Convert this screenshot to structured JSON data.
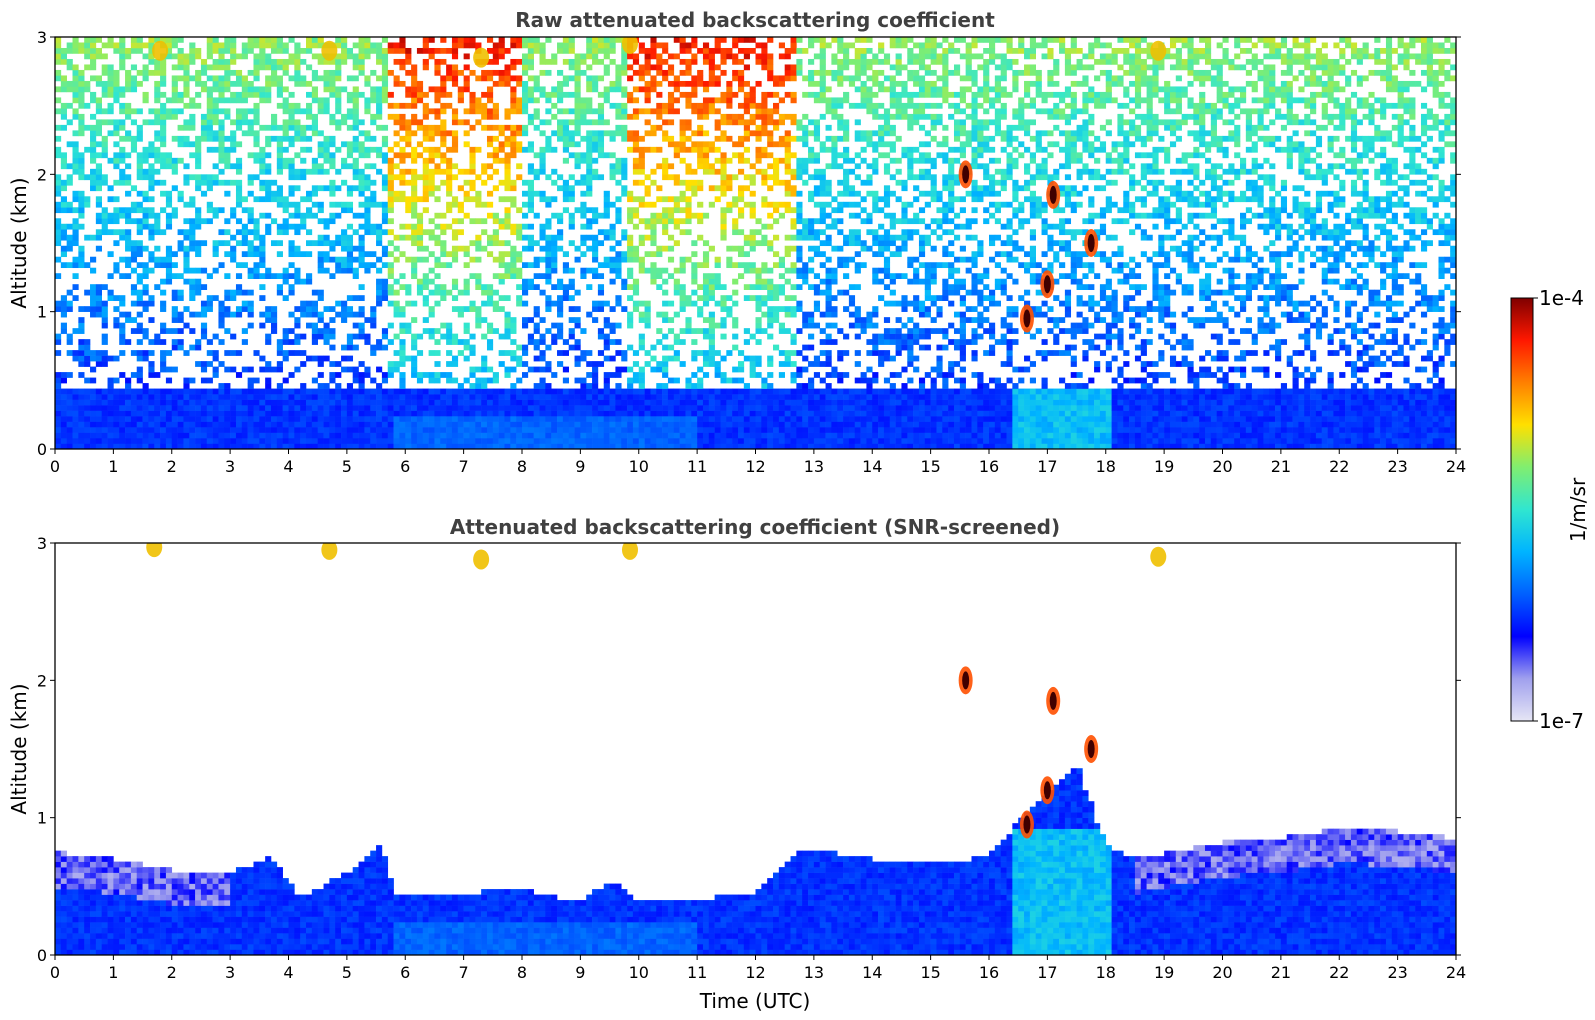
{
  "chart_data": [
    {
      "type": "heatmap",
      "title": "Raw attenuated backscattering coefficient",
      "xlabel": "",
      "ylabel": "Altitude (km)",
      "xlim": [
        0,
        24
      ],
      "ylim": [
        0,
        3
      ],
      "x_ticks": [
        "0",
        "1",
        "2",
        "3",
        "4",
        "5",
        "6",
        "7",
        "8",
        "9",
        "10",
        "11",
        "12",
        "13",
        "14",
        "15",
        "16",
        "17",
        "18",
        "19",
        "20",
        "21",
        "22",
        "23",
        "24"
      ],
      "y_ticks": [
        "0",
        "1",
        "2",
        "3"
      ],
      "grid": false,
      "colorscale": "jet",
      "color_range": [
        "1e-7",
        "1e-4"
      ],
      "features": [
        {
          "kind": "boundary_layer",
          "t_start": 0,
          "t_end": 24,
          "top_km": 0.45
        },
        {
          "kind": "noise_enhanced",
          "t_start": 5.7,
          "t_end": 8.0
        },
        {
          "kind": "noise_enhanced",
          "t_start": 9.8,
          "t_end": 12.7
        },
        {
          "kind": "cloud",
          "t": 1.8,
          "alt_km": 2.9
        },
        {
          "kind": "cloud",
          "t": 4.7,
          "alt_km": 2.9
        },
        {
          "kind": "cloud",
          "t": 7.3,
          "alt_km": 2.85
        },
        {
          "kind": "cloud",
          "t": 9.85,
          "alt_km": 2.95
        },
        {
          "kind": "cloud",
          "t": 15.6,
          "alt_km": 2.0
        },
        {
          "kind": "cloud",
          "t": 17.1,
          "alt_km": 1.85
        },
        {
          "kind": "cloud",
          "t": 17.75,
          "alt_km": 1.5
        },
        {
          "kind": "cloud",
          "t": 17.0,
          "alt_km": 1.2
        },
        {
          "kind": "cloud",
          "t": 16.65,
          "alt_km": 0.95
        },
        {
          "kind": "cloud",
          "t": 18.9,
          "alt_km": 2.9
        }
      ]
    },
    {
      "type": "heatmap",
      "title": "Attenuated backscattering coefficient (SNR-screened)",
      "xlabel": "Time (UTC)",
      "ylabel": "Altitude (km)",
      "xlim": [
        0,
        24
      ],
      "ylim": [
        0,
        3
      ],
      "x_ticks": [
        "0",
        "1",
        "2",
        "3",
        "4",
        "5",
        "6",
        "7",
        "8",
        "9",
        "10",
        "11",
        "12",
        "13",
        "14",
        "15",
        "16",
        "17",
        "18",
        "19",
        "20",
        "21",
        "22",
        "23",
        "24"
      ],
      "y_ticks": [
        "0",
        "1",
        "2",
        "3"
      ],
      "grid": false,
      "colorscale": "jet",
      "color_range": [
        "1e-7",
        "1e-4"
      ],
      "boundary_layer_top_km": [
        [
          0,
          0.75
        ],
        [
          1,
          0.7
        ],
        [
          2,
          0.62
        ],
        [
          3,
          0.6
        ],
        [
          3.7,
          0.72
        ],
        [
          4.2,
          0.42
        ],
        [
          5,
          0.6
        ],
        [
          5.6,
          0.82
        ],
        [
          5.8,
          0.45
        ],
        [
          7,
          0.45
        ],
        [
          8,
          0.48
        ],
        [
          9,
          0.38
        ],
        [
          9.5,
          0.55
        ],
        [
          10,
          0.4
        ],
        [
          11,
          0.4
        ],
        [
          12,
          0.46
        ],
        [
          12.8,
          0.78
        ],
        [
          14,
          0.7
        ],
        [
          15,
          0.66
        ],
        [
          16,
          0.72
        ],
        [
          16.4,
          0.92
        ],
        [
          16.8,
          1.1
        ],
        [
          17.5,
          1.4
        ],
        [
          18.0,
          0.8
        ],
        [
          18.5,
          0.7
        ],
        [
          20,
          0.82
        ],
        [
          21,
          0.85
        ],
        [
          22,
          0.92
        ],
        [
          23,
          0.9
        ],
        [
          24,
          0.85
        ]
      ],
      "features": [
        {
          "kind": "cloud",
          "t": 1.7,
          "alt_km": 2.97
        },
        {
          "kind": "cloud",
          "t": 4.7,
          "alt_km": 2.95
        },
        {
          "kind": "cloud",
          "t": 7.3,
          "alt_km": 2.88
        },
        {
          "kind": "cloud",
          "t": 9.85,
          "alt_km": 2.95
        },
        {
          "kind": "cloud",
          "t": 15.6,
          "alt_km": 2.0
        },
        {
          "kind": "cloud",
          "t": 17.1,
          "alt_km": 1.85
        },
        {
          "kind": "cloud",
          "t": 17.75,
          "alt_km": 1.5
        },
        {
          "kind": "cloud",
          "t": 17.0,
          "alt_km": 1.2
        },
        {
          "kind": "cloud",
          "t": 16.65,
          "alt_km": 0.95
        },
        {
          "kind": "cloud",
          "t": 18.9,
          "alt_km": 2.9
        }
      ]
    }
  ],
  "colorbar": {
    "label": "1/m/sr",
    "max_label": "1e-4",
    "min_label": "1e-7",
    "stops": [
      "#e6e6f5",
      "#a0a0ee",
      "#0000ff",
      "#0060ff",
      "#00b4ff",
      "#30e6d0",
      "#80ee70",
      "#ffe000",
      "#ff8000",
      "#ff1800",
      "#800000"
    ]
  }
}
